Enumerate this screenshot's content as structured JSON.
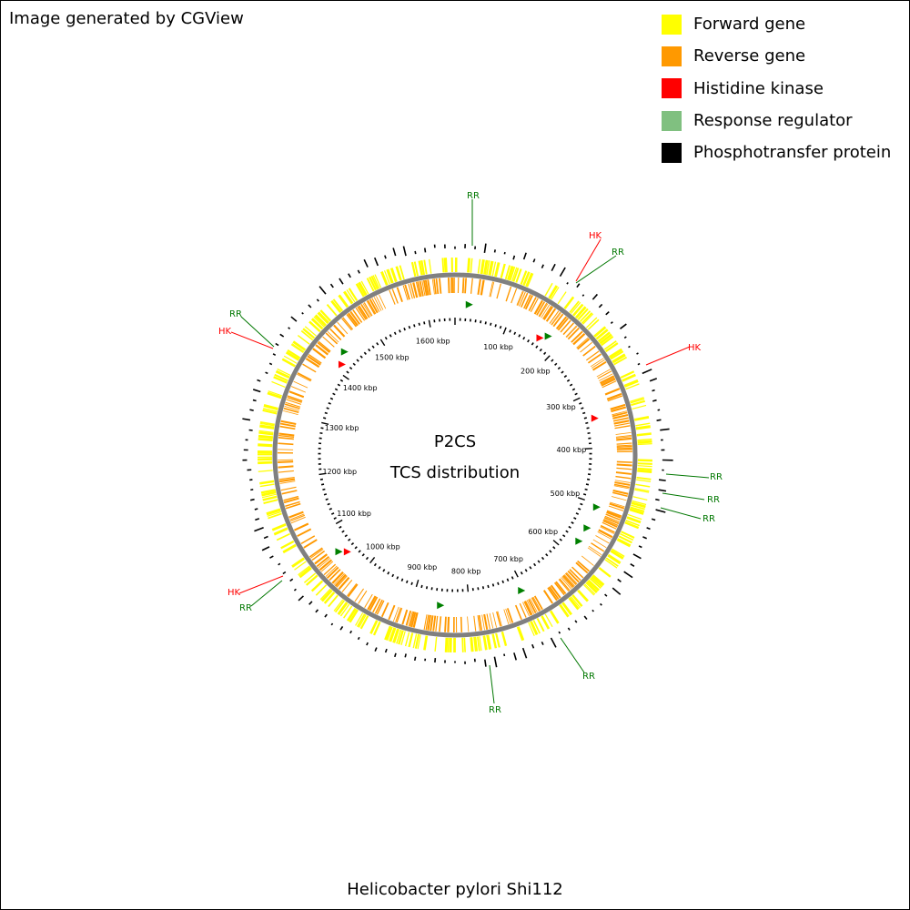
{
  "credit": "Image generated by CGView",
  "legend": [
    {
      "label": "Forward gene",
      "color": "#ffff00"
    },
    {
      "label": "Reverse gene",
      "color": "#ff9900"
    },
    {
      "label": "Histidine kinase",
      "color": "#ff0000"
    },
    {
      "label": "Response regulator",
      "color": "#80c080"
    },
    {
      "label": "Phosphotransfer protein",
      "color": "#000000"
    }
  ],
  "center": {
    "line1": "P2CS",
    "line2": "TCS distribution"
  },
  "caption": "Helicobacter pylori Shi112",
  "genome": {
    "length_kbp": 1650,
    "tick_labels": [
      "100 kbp",
      "200 kbp",
      "300 kbp",
      "400 kbp",
      "500 kbp",
      "600 kbp",
      "700 kbp",
      "800 kbp",
      "900 kbp",
      "1000 kbp",
      "1100 kbp",
      "1200 kbp",
      "1300 kbp",
      "1400 kbp",
      "1500 kbp",
      "1600 kbp"
    ]
  },
  "colors": {
    "hk": "#ff0000",
    "rr_label": "#007700",
    "rr_marker": "#008000",
    "backbone": "#808080",
    "forward": "#ffff00",
    "reverse": "#ff9900",
    "tick": "#000000"
  },
  "features": [
    {
      "type": "RR",
      "kbp": 25
    },
    {
      "type": "HK",
      "kbp": 165
    },
    {
      "type": "RR",
      "kbp": 175
    },
    {
      "type": "HK",
      "kbp": 345
    },
    {
      "type": "RR",
      "kbp": 505
    },
    {
      "type": "RR",
      "kbp": 545
    },
    {
      "type": "RR",
      "kbp": 572
    },
    {
      "type": "RR",
      "kbp": 705
    },
    {
      "type": "RR",
      "kbp": 850
    },
    {
      "type": "HK",
      "kbp": 1045
    },
    {
      "type": "RR",
      "kbp": 1055
    },
    {
      "type": "HK",
      "kbp": 1415
    },
    {
      "type": "RR",
      "kbp": 1435
    }
  ],
  "callouts": [
    {
      "text": "RR",
      "color": "#007700"
    },
    {
      "text": "HK",
      "color": "#ff0000"
    },
    {
      "text": "RR",
      "color": "#007700"
    },
    {
      "text": "HK",
      "color": "#ff0000"
    },
    {
      "text": "RR",
      "color": "#007700"
    },
    {
      "text": "RR",
      "color": "#007700"
    },
    {
      "text": "RR",
      "color": "#007700"
    },
    {
      "text": "RR",
      "color": "#007700"
    },
    {
      "text": "RR",
      "color": "#007700"
    },
    {
      "text": "HK",
      "color": "#ff0000"
    },
    {
      "text": "RR",
      "color": "#007700"
    },
    {
      "text": "RR",
      "color": "#007700"
    },
    {
      "text": "HK",
      "color": "#ff0000"
    }
  ]
}
